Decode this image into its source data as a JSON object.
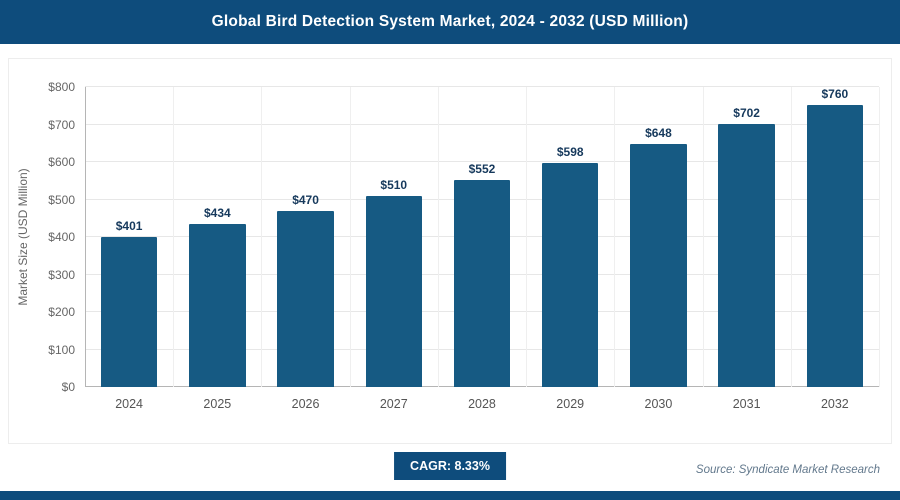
{
  "header": {
    "title": "Global Bird Detection System Market, 2024 - 2032 (USD Million)"
  },
  "chart_data": {
    "type": "bar",
    "title": "Global Bird Detection System Market, 2024 - 2032 (USD Million)",
    "categories": [
      "2024",
      "2025",
      "2026",
      "2027",
      "2028",
      "2029",
      "2030",
      "2031",
      "2032"
    ],
    "values": [
      401,
      434,
      470,
      510,
      552,
      598,
      648,
      702,
      760
    ],
    "labels": [
      "$401",
      "$434",
      "$470",
      "$510",
      "$552",
      "$598",
      "$648",
      "$702",
      "$760"
    ],
    "xlabel": "",
    "ylabel": "Market Size (USD Million)",
    "ylim": [
      0,
      800
    ],
    "ytick_step": 100,
    "ytick_labels": [
      "$0",
      "$100",
      "$200",
      "$300",
      "$400",
      "$500",
      "$600",
      "$700",
      "$800"
    ],
    "grid": true,
    "legend": "none",
    "bar_color": "#165a83"
  },
  "footer": {
    "cagr_label": "CAGR: 8.33%",
    "source": "Source: Syndicate Market Research"
  },
  "colors": {
    "header_bg": "#0e4c7c",
    "bar": "#165a83",
    "accent_strip": "#0e4c7c",
    "value_label": "#16395c",
    "axis_text": "#666666"
  }
}
